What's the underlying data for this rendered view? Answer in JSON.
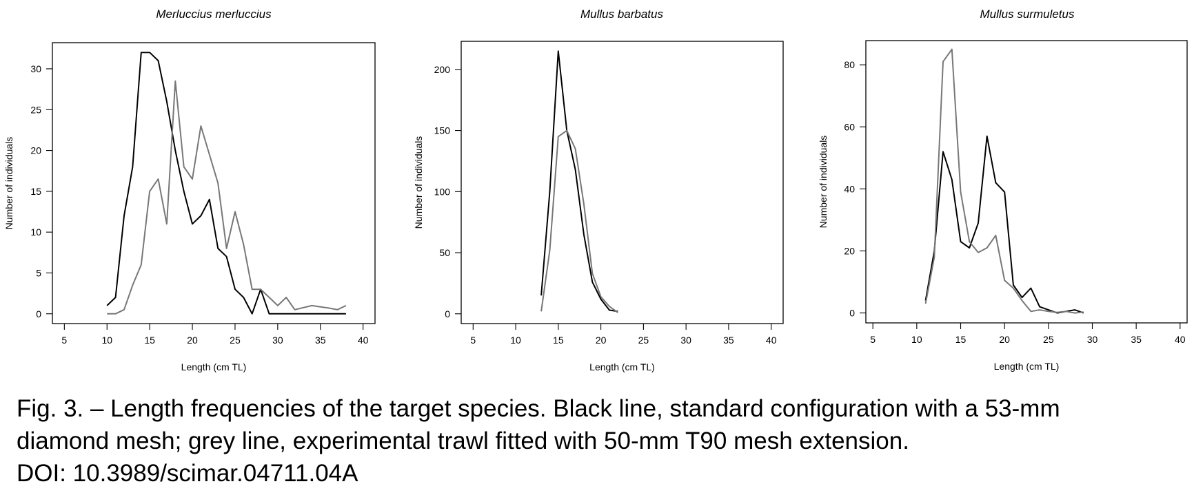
{
  "chart_data": [
    {
      "type": "line",
      "title": "Merluccius merluccius",
      "xlabel": "Length (cm TL)",
      "ylabel": "Number of individuals",
      "xlim": [
        3.6,
        41.4
      ],
      "ylim": [
        -1.2,
        33.2
      ],
      "xticks": [
        "5",
        "10",
        "15",
        "20",
        "25",
        "30",
        "35",
        "40"
      ],
      "yticks": [
        "0",
        "5",
        "10",
        "15",
        "20",
        "25",
        "30"
      ],
      "grid": false,
      "series": [
        {
          "color": "#000000",
          "x": [
            10,
            11,
            12,
            13,
            14,
            15,
            16,
            17,
            18,
            19,
            20,
            21,
            22,
            23,
            24,
            25,
            26,
            27,
            28,
            29,
            30,
            31,
            32,
            33,
            34,
            35,
            36,
            37,
            38
          ],
          "y": [
            1,
            2,
            12,
            18,
            32,
            32,
            31,
            26,
            20,
            15,
            11,
            12,
            14,
            8,
            7,
            3,
            2,
            0,
            3,
            0,
            0,
            0,
            0,
            0,
            0,
            0,
            0,
            0,
            0
          ]
        },
        {
          "color": "#777777",
          "x": [
            10,
            11,
            12,
            13,
            14,
            15,
            16,
            17,
            18,
            19,
            20,
            21,
            22,
            23,
            24,
            25,
            26,
            27,
            28,
            29,
            30,
            31,
            32,
            34,
            36,
            37,
            38
          ],
          "y": [
            0,
            0,
            0.5,
            3.5,
            6,
            15,
            16.5,
            11,
            28.5,
            18,
            16.5,
            23,
            19.5,
            16,
            8,
            12.5,
            8.5,
            3,
            3,
            2,
            1,
            2,
            0.5,
            1,
            0.7,
            0.5,
            1
          ]
        }
      ]
    },
    {
      "type": "line",
      "title": "Mullus barbatus",
      "xlabel": "Length (cm TL)",
      "ylabel": "Number of individuals",
      "xlim": [
        3.6,
        41.4
      ],
      "ylim": [
        -8,
        223
      ],
      "xticks": [
        "5",
        "10",
        "15",
        "20",
        "25",
        "30",
        "35",
        "40"
      ],
      "yticks": [
        "0",
        "50",
        "100",
        "150",
        "200"
      ],
      "grid": false,
      "series": [
        {
          "color": "#000000",
          "x": [
            13,
            14,
            15,
            16,
            17,
            18,
            19,
            20,
            21,
            22
          ],
          "y": [
            15,
            100,
            215,
            150,
            118,
            65,
            26,
            12,
            3,
            2
          ]
        },
        {
          "color": "#777777",
          "x": [
            13,
            14,
            15,
            16,
            17,
            18,
            19,
            20,
            21,
            22
          ],
          "y": [
            2,
            52,
            145,
            150,
            135,
            90,
            33,
            14,
            6,
            1
          ]
        }
      ]
    },
    {
      "type": "line",
      "title": "Mullus surmuletus",
      "xlabel": "Length (cm TL)",
      "ylabel": "Number of individuals",
      "xlim": [
        4.2,
        40.8
      ],
      "ylim": [
        -3.2,
        87.8
      ],
      "xticks": [
        "5",
        "10",
        "15",
        "20",
        "25",
        "30",
        "35",
        "40"
      ],
      "yticks": [
        "0",
        "20",
        "40",
        "60",
        "80"
      ],
      "grid": false,
      "series": [
        {
          "color": "#000000",
          "x": [
            11,
            12,
            13,
            14,
            15,
            16,
            17,
            18,
            19,
            20,
            21,
            22,
            23,
            24,
            25,
            26,
            27,
            28,
            29
          ],
          "y": [
            4,
            20,
            52,
            43,
            23,
            21,
            29,
            57,
            42,
            39,
            9,
            5,
            8,
            2,
            1,
            0,
            0.5,
            1,
            0
          ]
        },
        {
          "color": "#777777",
          "x": [
            11,
            12,
            13,
            14,
            15,
            16,
            17,
            18,
            19,
            20,
            21,
            22,
            23,
            24,
            25,
            26,
            27,
            28,
            29
          ],
          "y": [
            3,
            18,
            81,
            85,
            39,
            23,
            19.5,
            21,
            25,
            10.5,
            8,
            4,
            0.5,
            1,
            0.5,
            0.2,
            0.5,
            0,
            0.3
          ]
        }
      ]
    }
  ],
  "caption": {
    "line1": "Fig. 3. – Length frequencies of the target species. Black line, standard configuration with a 53-mm",
    "line2": "diamond mesh; grey line, experimental trawl fitted with 50-mm T90 mesh extension.",
    "line3": "DOI: 10.3989/scimar.04711.04A"
  }
}
